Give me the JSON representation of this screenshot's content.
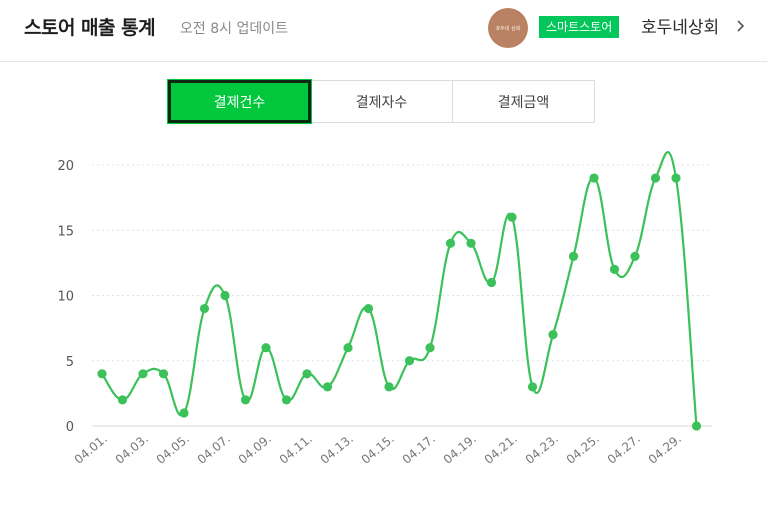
{
  "header": {
    "title": "스토어 매출 통계",
    "subtitle": "오전 8시 업데이트",
    "avatar_text": "호두네 상회",
    "badge": "스마트스토어",
    "store_name": "호두네상회"
  },
  "tabs": [
    {
      "label": "결제건수",
      "active": true
    },
    {
      "label": "결제자수",
      "active": false
    },
    {
      "label": "결제금액",
      "active": false
    }
  ],
  "colors": {
    "accent": "#00c73c",
    "line": "#3cc15a"
  },
  "chart_data": {
    "type": "line",
    "x": [
      "04.01.",
      "04.02.",
      "04.03.",
      "04.04.",
      "04.05.",
      "04.06.",
      "04.07.",
      "04.08.",
      "04.09.",
      "04.10.",
      "04.11.",
      "04.12.",
      "04.13.",
      "04.14.",
      "04.15.",
      "04.16.",
      "04.17.",
      "04.18.",
      "04.19.",
      "04.20.",
      "04.21.",
      "04.22.",
      "04.23.",
      "04.24.",
      "04.25.",
      "04.26.",
      "04.27.",
      "04.28.",
      "04.29.",
      "04.30."
    ],
    "x_tick_labels": [
      "04.01.",
      "04.03.",
      "04.05.",
      "04.07.",
      "04.09.",
      "04.11.",
      "04.13.",
      "04.15.",
      "04.17.",
      "04.19.",
      "04.21.",
      "04.23.",
      "04.25.",
      "04.27.",
      "04.29."
    ],
    "series": [
      {
        "values": [
          4,
          2,
          4,
          4,
          1,
          9,
          10,
          2,
          6,
          2,
          4,
          3,
          6,
          9,
          3,
          5,
          6,
          14,
          14,
          11,
          16,
          3,
          7,
          13,
          19,
          12,
          13,
          19,
          19,
          0
        ]
      }
    ],
    "y_ticks": [
      0,
      5,
      10,
      15,
      20
    ],
    "ylim": [
      0,
      20
    ],
    "grid": true,
    "legend": "none"
  }
}
